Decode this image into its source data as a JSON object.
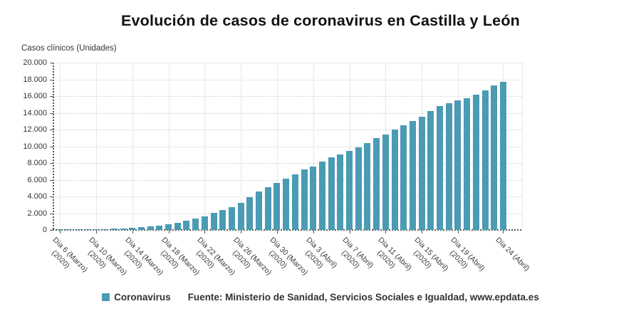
{
  "title": "Evolución de casos de coronavirus en Castilla y León",
  "axis_title": "Casos clínicos (Unidades)",
  "legend": {
    "label": "Coronavirus"
  },
  "source": "Fuente: Ministerio de Sanidad, Servicios Sociales e Igualdad, www.epdata.es",
  "colors": {
    "bar": "#4A9BB3",
    "grid": "#D2D2D2",
    "axis": "#555555",
    "text": "#333333",
    "title": "#111111"
  },
  "chart_data": {
    "type": "bar",
    "title": "Evolución de casos de coronavirus en Castilla y León",
    "xlabel": "",
    "ylabel": "Casos clínicos (Unidades)",
    "ylim": [
      0,
      20000
    ],
    "ytick_step": 2000,
    "y_tick_labels": [
      "0",
      "2.000",
      "4.000",
      "6.000",
      "8.000",
      "10.000",
      "12.000",
      "14.000",
      "16.000",
      "18.000",
      "20.000"
    ],
    "grid": true,
    "legend_position": "bottom",
    "series_name": "Coronavirus",
    "categories": [
      "Día 6 (Marzo)",
      "Día 7 (Marzo)",
      "Día 8 (Marzo)",
      "Día 9 (Marzo)",
      "Día 10 (Marzo)",
      "Día 11 (Marzo)",
      "Día 12 (Marzo)",
      "Día 13 (Marzo)",
      "Día 14 (Marzo)",
      "Día 15 (Marzo)",
      "Día 16 (Marzo)",
      "Día 17 (Marzo)",
      "Día 18 (Marzo)",
      "Día 19 (Marzo)",
      "Día 20 (Marzo)",
      "Día 21 (Marzo)",
      "Día 22 (Marzo)",
      "Día 23 (Marzo)",
      "Día 24 (Marzo)",
      "Día 25 (Marzo)",
      "Día 26 (Marzo)",
      "Día 27 (Marzo)",
      "Día 28 (Marzo)",
      "Día 29 (Marzo)",
      "Día 30 (Marzo)",
      "Día 31 (Marzo)",
      "Día 1 (Abril)",
      "Día 2 (Abril)",
      "Día 3 (Abril)",
      "Día 4 (Abril)",
      "Día 5 (Abril)",
      "Día 6 (Abril)",
      "Día 7 (Abril)",
      "Día 8 (Abril)",
      "Día 9 (Abril)",
      "Día 10 (Abril)",
      "Día 11 (Abril)",
      "Día 12 (Abril)",
      "Día 13 (Abril)",
      "Día 14 (Abril)",
      "Día 15 (Abril)",
      "Día 16 (Abril)",
      "Día 17 (Abril)",
      "Día 18 (Abril)",
      "Día 19 (Abril)",
      "Día 20 (Abril)",
      "Día 21 (Abril)",
      "Día 22 (Abril)",
      "Día 23 (Abril)",
      "Día 24 (Abril)"
    ],
    "values": [
      10,
      15,
      25,
      40,
      60,
      90,
      130,
      180,
      250,
      330,
      420,
      530,
      680,
      870,
      1100,
      1350,
      1650,
      2050,
      2400,
      2700,
      3250,
      3900,
      4600,
      5150,
      5650,
      6100,
      6600,
      7200,
      7600,
      8150,
      8700,
      9000,
      9450,
      9900,
      10350,
      11000,
      11400,
      12000,
      12500,
      13050,
      13550,
      14250,
      14800,
      15150,
      15500,
      15750,
      16150,
      16700,
      17250,
      17700
    ],
    "x_tick_indices": [
      0,
      4,
      8,
      12,
      16,
      20,
      24,
      28,
      32,
      36,
      40,
      44,
      49
    ],
    "x_tick_labels": [
      {
        "line1": "Día 6 (Marzo)",
        "line2": "(2020)"
      },
      {
        "line1": "Día 10 (Marzo)",
        "line2": "(2020)"
      },
      {
        "line1": "Día 14 (Marzo)",
        "line2": "(2020)"
      },
      {
        "line1": "Día 18 (Marzo)",
        "line2": "(2020)"
      },
      {
        "line1": "Día 22 (Marzo)",
        "line2": "(2020)"
      },
      {
        "line1": "Día 26 (Marzo)",
        "line2": "(2020)"
      },
      {
        "line1": "Día 30 (Marzo)",
        "line2": "(2020)"
      },
      {
        "line1": "Día 3 (Abril)",
        "line2": "(2020)"
      },
      {
        "line1": "Día 7 (Abril)",
        "line2": "(2020)"
      },
      {
        "line1": "Día 11 (Abril)",
        "line2": "(2020)"
      },
      {
        "line1": "Día 15 (Abril)",
        "line2": "(2020)"
      },
      {
        "line1": "Día 19 (Abril)",
        "line2": "(2020)"
      },
      {
        "line1": "Día 24 (Abril)",
        "line2": ""
      }
    ]
  }
}
